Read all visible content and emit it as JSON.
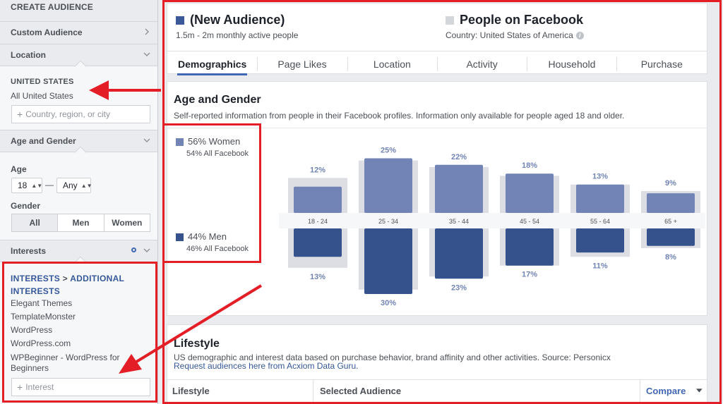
{
  "sidebar": {
    "title": "CREATE AUDIENCE",
    "custom_audience": "Custom Audience",
    "location": {
      "label": "Location",
      "country_header": "UNITED STATES",
      "country_value": "All United States",
      "input_placeholder": "Country, region, or city"
    },
    "age_gender": {
      "label": "Age and Gender",
      "age_label": "Age",
      "age_min": "18",
      "age_dash": "—",
      "age_max": "Any",
      "gender_label": "Gender",
      "gender_options": [
        "All",
        "Men",
        "Women"
      ],
      "gender_selected": "All"
    },
    "interests": {
      "label": "Interests",
      "header_main": "INTERESTS",
      "header_sep": " > ",
      "header_sub": "ADDITIONAL INTERESTS",
      "items": [
        "Elegant Themes",
        "TemplateMonster",
        "WordPress",
        "WordPress.com",
        "WPBeginner - WordPress for Beginners"
      ],
      "input_placeholder": "Interest"
    }
  },
  "audience": {
    "name": "(New Audience)",
    "size": "1.5m - 2m monthly active people",
    "color": "#3b5998"
  },
  "comparison": {
    "name": "People on Facebook",
    "sub": "Country: United States of America",
    "info_icon": "info-icon",
    "color": "#d3d6db"
  },
  "tabs": [
    "Demographics",
    "Page Likes",
    "Location",
    "Activity",
    "Household",
    "Purchase"
  ],
  "active_tab": "Demographics",
  "age_gender_section": {
    "title": "Age and Gender",
    "subtitle": "Self-reported information from people in their Facebook profiles. Information only available for people aged 18 and older.",
    "women_label": "56% Women",
    "women_sub": "54% All Facebook",
    "men_label": "44% Men",
    "men_sub": "46% All Facebook"
  },
  "chart_data": {
    "type": "bar",
    "categories": [
      "18 - 24",
      "25 - 34",
      "35 - 44",
      "45 - 54",
      "55 - 64",
      "65 +"
    ],
    "series": [
      {
        "name": "Women",
        "values": [
          12,
          25,
          22,
          18,
          13,
          9
        ],
        "labels": [
          "12%",
          "25%",
          "22%",
          "18%",
          "13%",
          "9%"
        ],
        "baseline": [
          16,
          24,
          21,
          17,
          13,
          10
        ],
        "color": "#7184b5"
      },
      {
        "name": "Men",
        "values": [
          13,
          30,
          23,
          17,
          11,
          8
        ],
        "labels": [
          "13%",
          "30%",
          "23%",
          "17%",
          "11%",
          "8%"
        ],
        "baseline": [
          18,
          28,
          22,
          17,
          13,
          9
        ],
        "color": "#36528c"
      }
    ],
    "baseline_color": "#dcdee3",
    "ylim": [
      0,
      30
    ]
  },
  "lifestyle": {
    "title": "Lifestyle",
    "subtitle": "US demographic and interest data based on purchase behavior, brand affinity and other activities. Source: Personicx",
    "link": "Request audiences here from Acxiom Data Guru.",
    "col_lifestyle": "Lifestyle",
    "col_selected": "Selected Audience",
    "col_compare": "Compare"
  },
  "annotation_color": "#e41e26"
}
